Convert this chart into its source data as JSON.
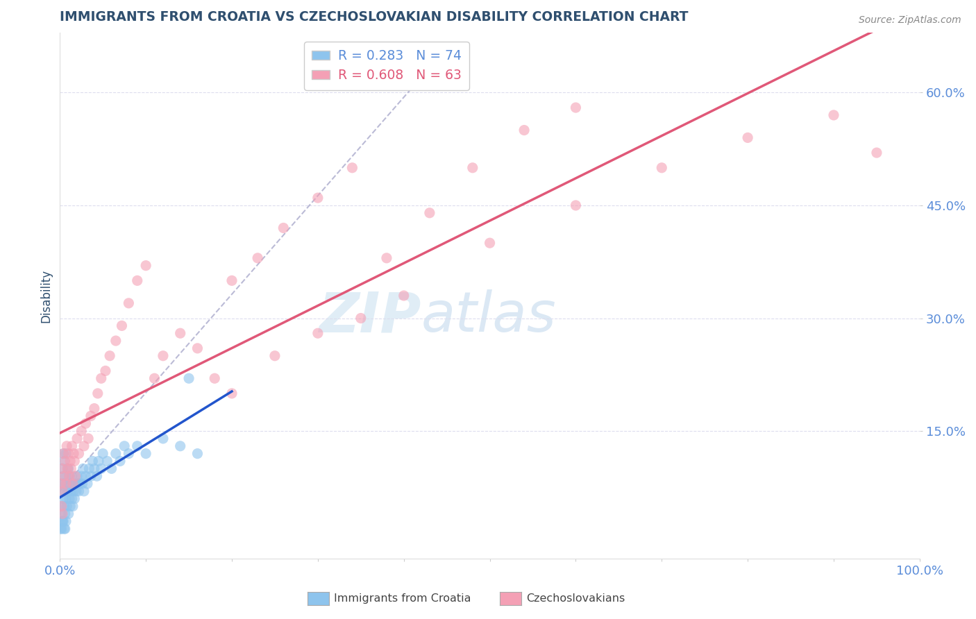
{
  "title": "IMMIGRANTS FROM CROATIA VS CZECHOSLOVAKIAN DISABILITY CORRELATION CHART",
  "source": "Source: ZipAtlas.com",
  "ylabel": "Disability",
  "xlim": [
    0.0,
    1.0
  ],
  "ylim": [
    -0.02,
    0.68
  ],
  "yticks": [
    0.15,
    0.3,
    0.45,
    0.6
  ],
  "ytick_labels": [
    "15.0%",
    "30.0%",
    "45.0%",
    "60.0%"
  ],
  "xtick_left_label": "0.0%",
  "xtick_right_label": "100.0%",
  "croatia_color": "#8EC4ED",
  "czech_color": "#F4A0B5",
  "croatia_line_color": "#2255CC",
  "czech_line_color": "#E05878",
  "dashed_color": "#AAAACC",
  "legend_text1": "R = 0.283   N = 74",
  "legend_text2": "R = 0.608   N = 63",
  "watermark_ZIP": "ZIP",
  "watermark_atlas": "atlas",
  "legend_label1": "Immigrants from Croatia",
  "legend_label2": "Czechoslovakians",
  "title_color": "#2F4F6F",
  "axis_label_color": "#5B8DD9",
  "grid_color": "#DDDDEE",
  "croatia_x": [
    0.001,
    0.002,
    0.002,
    0.003,
    0.003,
    0.003,
    0.004,
    0.004,
    0.004,
    0.005,
    0.005,
    0.005,
    0.006,
    0.006,
    0.007,
    0.007,
    0.007,
    0.008,
    0.008,
    0.009,
    0.009,
    0.01,
    0.01,
    0.01,
    0.011,
    0.011,
    0.012,
    0.012,
    0.013,
    0.014,
    0.014,
    0.015,
    0.015,
    0.016,
    0.017,
    0.018,
    0.019,
    0.02,
    0.021,
    0.022,
    0.023,
    0.025,
    0.026,
    0.027,
    0.028,
    0.03,
    0.032,
    0.034,
    0.036,
    0.038,
    0.04,
    0.043,
    0.045,
    0.048,
    0.05,
    0.055,
    0.06,
    0.065,
    0.07,
    0.075,
    0.08,
    0.09,
    0.1,
    0.12,
    0.14,
    0.16,
    0.001,
    0.002,
    0.003,
    0.004,
    0.005,
    0.006,
    0.007,
    0.15
  ],
  "croatia_y": [
    0.05,
    0.08,
    0.04,
    0.07,
    0.1,
    0.03,
    0.06,
    0.09,
    0.12,
    0.05,
    0.08,
    0.11,
    0.04,
    0.07,
    0.06,
    0.09,
    0.12,
    0.05,
    0.08,
    0.07,
    0.1,
    0.04,
    0.07,
    0.1,
    0.06,
    0.09,
    0.05,
    0.08,
    0.07,
    0.06,
    0.09,
    0.05,
    0.08,
    0.07,
    0.06,
    0.08,
    0.07,
    0.09,
    0.08,
    0.07,
    0.08,
    0.09,
    0.08,
    0.1,
    0.07,
    0.09,
    0.08,
    0.1,
    0.09,
    0.11,
    0.1,
    0.09,
    0.11,
    0.1,
    0.12,
    0.11,
    0.1,
    0.12,
    0.11,
    0.13,
    0.12,
    0.13,
    0.12,
    0.14,
    0.13,
    0.12,
    0.02,
    0.02,
    0.03,
    0.03,
    0.02,
    0.02,
    0.03,
    0.22
  ],
  "czech_x": [
    0.001,
    0.002,
    0.003,
    0.004,
    0.005,
    0.006,
    0.007,
    0.008,
    0.009,
    0.01,
    0.011,
    0.012,
    0.013,
    0.014,
    0.015,
    0.016,
    0.017,
    0.018,
    0.02,
    0.022,
    0.025,
    0.028,
    0.03,
    0.033,
    0.036,
    0.04,
    0.044,
    0.048,
    0.053,
    0.058,
    0.065,
    0.072,
    0.08,
    0.09,
    0.1,
    0.11,
    0.12,
    0.14,
    0.16,
    0.18,
    0.2,
    0.23,
    0.26,
    0.3,
    0.34,
    0.38,
    0.43,
    0.48,
    0.54,
    0.6,
    0.2,
    0.25,
    0.3,
    0.35,
    0.4,
    0.5,
    0.6,
    0.7,
    0.8,
    0.9,
    0.95,
    0.002,
    0.003
  ],
  "czech_y": [
    0.08,
    0.1,
    0.07,
    0.12,
    0.09,
    0.11,
    0.08,
    0.13,
    0.1,
    0.12,
    0.09,
    0.11,
    0.1,
    0.13,
    0.08,
    0.12,
    0.11,
    0.09,
    0.14,
    0.12,
    0.15,
    0.13,
    0.16,
    0.14,
    0.17,
    0.18,
    0.2,
    0.22,
    0.23,
    0.25,
    0.27,
    0.29,
    0.32,
    0.35,
    0.37,
    0.22,
    0.25,
    0.28,
    0.26,
    0.22,
    0.35,
    0.38,
    0.42,
    0.46,
    0.5,
    0.38,
    0.44,
    0.5,
    0.55,
    0.58,
    0.2,
    0.25,
    0.28,
    0.3,
    0.33,
    0.4,
    0.45,
    0.5,
    0.54,
    0.57,
    0.52,
    0.05,
    0.04
  ]
}
